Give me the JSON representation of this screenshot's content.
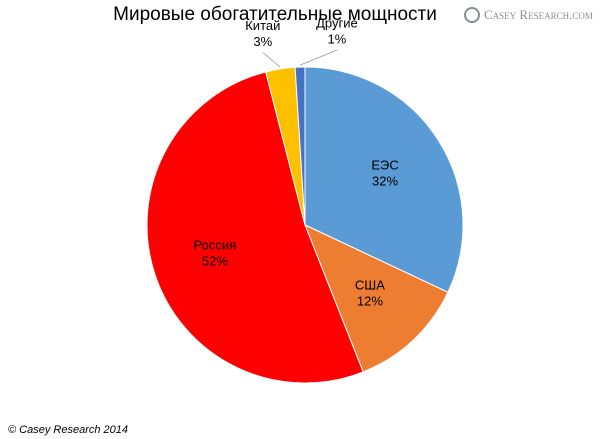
{
  "chart_data": {
    "type": "pie",
    "title": "Мировые обогатительные мощности",
    "logo": "Casey Research.com",
    "footer": "© Casey Research 2014",
    "categories": [
      "ЕЭС",
      "США",
      "Россия",
      "Китай",
      "Другие"
    ],
    "values": [
      32,
      12,
      52,
      3,
      1
    ],
    "value_labels": [
      "32%",
      "12%",
      "52%",
      "3%",
      "1%"
    ],
    "colors": [
      "#5b9bd5",
      "#ed7d31",
      "#ff0000",
      "#ffc000",
      "#4472c4"
    ]
  }
}
